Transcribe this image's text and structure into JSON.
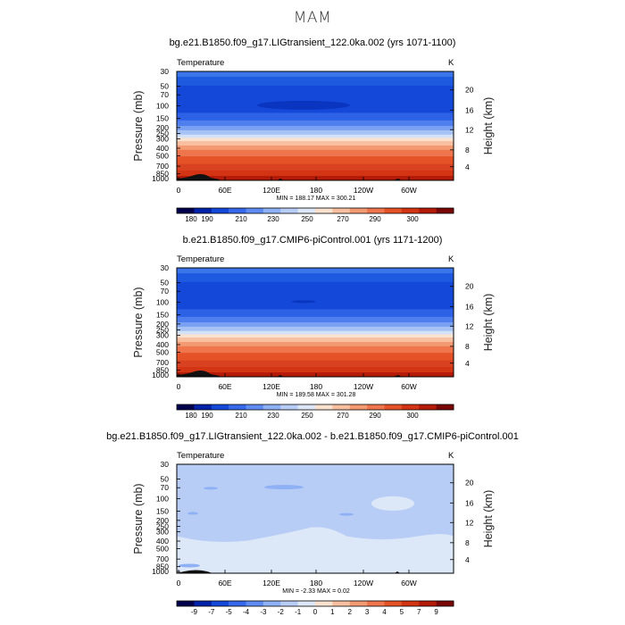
{
  "page_title": "MAM",
  "panels": [
    {
      "title": "bg.e21.B1850.f09_g17.LIGtransient_122.0ka.002 (yrs 1071-1100)",
      "variable": "Temperature",
      "units": "K",
      "stats": "MIN = 188.17   MAX = 300.21"
    },
    {
      "title": "b.e21.B1850.f09_g17.CMIP6-piControl.001 (yrs 1171-1200)",
      "variable": "Temperature",
      "units": "K",
      "stats": "MIN = 189.58   MAX = 301.28"
    },
    {
      "title": "bg.e21.B1850.f09_g17.LIGtransient_122.0ka.002 - b.e21.B1850.f09_g17.CMIP6-piControl.001",
      "variable": "Temperature",
      "units": "K",
      "stats": "MIN = -2.33   MAX = 0.02"
    }
  ],
  "chart_data": [
    {
      "type": "heatmap",
      "title": "bg.e21.B1850.f09_g17.LIGtransient_122.0ka.002 (yrs 1071-1100)",
      "subtitle": "Temperature",
      "xlabel": "",
      "ylabel": "Pressure (mb)",
      "ylabel_right": "Height (km)",
      "x_ticks": [
        "0",
        "60E",
        "120E",
        "180",
        "120W",
        "60W"
      ],
      "y_ticks": [
        "30",
        "50",
        "70",
        "100",
        "150",
        "200",
        "250",
        "300",
        "400",
        "500",
        "700",
        "850",
        "1000"
      ],
      "y_ticks_right": [
        "20",
        "16",
        "12",
        "8",
        "4"
      ],
      "min": 188.17,
      "max": 300.21,
      "colorbar": {
        "levels": [
          "180",
          "190",
          "210",
          "230",
          "250",
          "270",
          "290",
          "300"
        ],
        "colors": [
          "#00004c",
          "#0022a8",
          "#1448d8",
          "#3568ea",
          "#5e8cf2",
          "#8eb0f4",
          "#b8cdf6",
          "#dce7f8",
          "#fbe2cf",
          "#f8c0a0",
          "#f49a72",
          "#ef764c",
          "#e55228",
          "#d23414",
          "#b41a08",
          "#7a0606"
        ]
      }
    },
    {
      "type": "heatmap",
      "title": "b.e21.B1850.f09_g17.CMIP6-piControl.001 (yrs 1171-1200)",
      "subtitle": "Temperature",
      "xlabel": "",
      "ylabel": "Pressure (mb)",
      "ylabel_right": "Height (km)",
      "x_ticks": [
        "0",
        "60E",
        "120E",
        "180",
        "120W",
        "60W"
      ],
      "y_ticks": [
        "30",
        "50",
        "70",
        "100",
        "150",
        "200",
        "250",
        "300",
        "400",
        "500",
        "700",
        "850",
        "1000"
      ],
      "y_ticks_right": [
        "20",
        "16",
        "12",
        "8",
        "4"
      ],
      "min": 189.58,
      "max": 301.28,
      "colorbar": {
        "levels": [
          "180",
          "190",
          "210",
          "230",
          "250",
          "270",
          "290",
          "300"
        ],
        "colors": [
          "#00004c",
          "#0022a8",
          "#1448d8",
          "#3568ea",
          "#5e8cf2",
          "#8eb0f4",
          "#b8cdf6",
          "#dce7f8",
          "#fbe2cf",
          "#f8c0a0",
          "#f49a72",
          "#ef764c",
          "#e55228",
          "#d23414",
          "#b41a08",
          "#7a0606"
        ]
      }
    },
    {
      "type": "heatmap",
      "title": "bg.e21.B1850.f09_g17.LIGtransient_122.0ka.002 - b.e21.B1850.f09_g17.CMIP6-piControl.001",
      "subtitle": "Temperature",
      "xlabel": "",
      "ylabel": "Pressure (mb)",
      "ylabel_right": "Height (km)",
      "x_ticks": [
        "0",
        "60E",
        "120E",
        "180",
        "120W",
        "60W"
      ],
      "y_ticks": [
        "30",
        "50",
        "70",
        "100",
        "150",
        "200",
        "250",
        "300",
        "400",
        "500",
        "700",
        "850",
        "1000"
      ],
      "y_ticks_right": [
        "20",
        "16",
        "12",
        "8",
        "4"
      ],
      "min": -2.33,
      "max": 0.02,
      "colorbar": {
        "levels": [
          "-9",
          "-7",
          "-5",
          "-4",
          "-3",
          "-2",
          "-1",
          "0",
          "1",
          "2",
          "3",
          "4",
          "5",
          "7",
          "9"
        ],
        "colors": [
          "#00004c",
          "#0022a8",
          "#1448d8",
          "#3568ea",
          "#5e8cf2",
          "#8eb0f4",
          "#b8cdf6",
          "#dce7f8",
          "#fbe2cf",
          "#f8c0a0",
          "#f49a72",
          "#ef764c",
          "#e55228",
          "#d23414",
          "#b41a08",
          "#7a0606"
        ]
      }
    }
  ]
}
